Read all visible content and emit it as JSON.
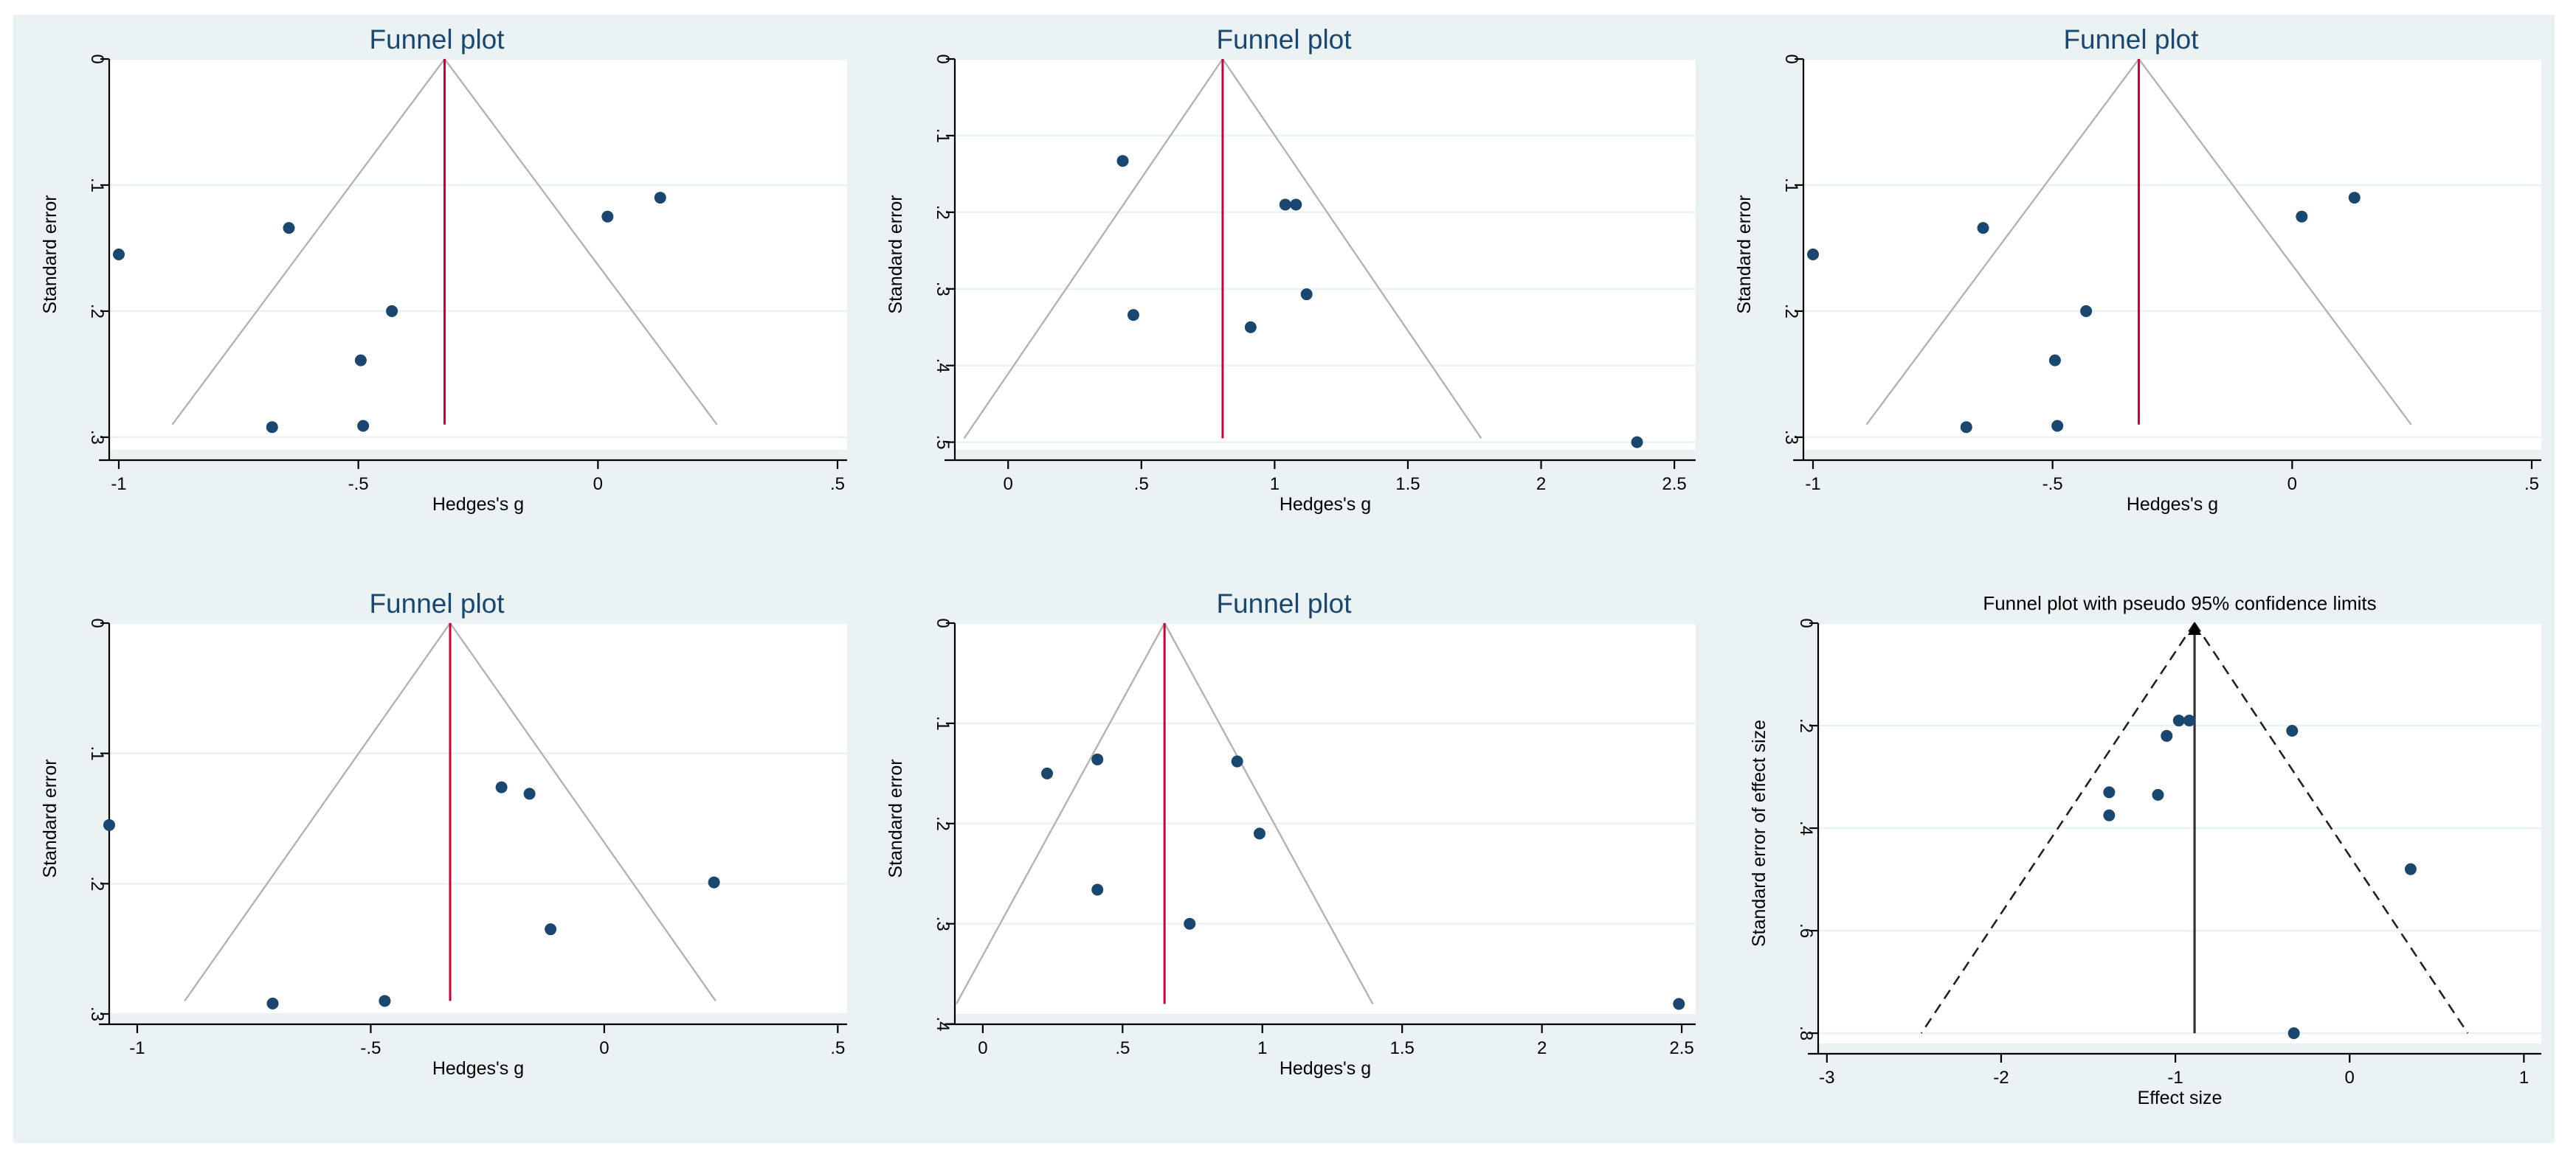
{
  "colors": {
    "figure_background": "#eaf2f3",
    "plot_background": "#ffffff",
    "title": "#1a476f",
    "point": "#1a476f",
    "pooled_line": "#c10534",
    "funnel_lines": "#b3b3b3"
  },
  "chart_data": [
    {
      "type": "scatter",
      "title": "Funnel plot",
      "xlabel": "Hedges's g",
      "ylabel": "Standard error",
      "xlim": [
        -1.02,
        0.52
      ],
      "ylim": [
        0,
        0.31
      ],
      "y_reversed": true,
      "xticks": [
        -1,
        -0.5,
        0,
        0.5
      ],
      "xtick_labels": [
        "-1",
        "-.5",
        "0",
        ".5"
      ],
      "yticks": [
        0,
        0.1,
        0.2,
        0.3
      ],
      "ytick_labels": [
        "0",
        ".1",
        ".2",
        ".3"
      ],
      "pooled_effect": -0.32,
      "funnel_base_se": 0.29,
      "center_line_style": "red-solid",
      "funnel_style": "gray-solid",
      "points": [
        {
          "x": -1.0,
          "y": 0.155
        },
        {
          "x": -0.645,
          "y": 0.134
        },
        {
          "x": -0.43,
          "y": 0.2
        },
        {
          "x": -0.495,
          "y": 0.239
        },
        {
          "x": -0.68,
          "y": 0.292
        },
        {
          "x": -0.49,
          "y": 0.291
        },
        {
          "x": 0.02,
          "y": 0.125
        },
        {
          "x": 0.13,
          "y": 0.11
        }
      ]
    },
    {
      "type": "scatter",
      "title": "Funnel plot",
      "xlabel": "Hedges's g",
      "ylabel": "Standard error",
      "xlim": [
        -0.2,
        2.58
      ],
      "ylim": [
        0,
        0.51
      ],
      "y_reversed": true,
      "xticks": [
        0,
        0.5,
        1,
        1.5,
        2,
        2.5
      ],
      "xtick_labels": [
        "0",
        ".5",
        "1",
        "1.5",
        "2",
        "2.5"
      ],
      "yticks": [
        0,
        0.1,
        0.2,
        0.3,
        0.4,
        0.5
      ],
      "ytick_labels": [
        "0",
        ".1",
        ".2",
        ".3",
        ".4",
        ".5"
      ],
      "pooled_effect": 0.805,
      "funnel_base_se": 0.495,
      "center_line_style": "red-solid",
      "funnel_style": "gray-solid",
      "points": [
        {
          "x": 0.43,
          "y": 0.133
        },
        {
          "x": 0.47,
          "y": 0.334
        },
        {
          "x": 0.91,
          "y": 0.35
        },
        {
          "x": 1.04,
          "y": 0.19
        },
        {
          "x": 1.08,
          "y": 0.19
        },
        {
          "x": 1.12,
          "y": 0.307
        },
        {
          "x": 2.36,
          "y": 0.5
        }
      ]
    },
    {
      "type": "scatter",
      "title": "Funnel plot",
      "xlabel": "Hedges's g",
      "ylabel": "Standard error",
      "xlim": [
        -1.02,
        0.52
      ],
      "ylim": [
        0,
        0.31
      ],
      "y_reversed": true,
      "xticks": [
        -1,
        -0.5,
        0,
        0.5
      ],
      "xtick_labels": [
        "-1",
        "-.5",
        "0",
        ".5"
      ],
      "yticks": [
        0,
        0.1,
        0.2,
        0.3
      ],
      "ytick_labels": [
        "0",
        ".1",
        ".2",
        ".3"
      ],
      "pooled_effect": -0.32,
      "funnel_base_se": 0.29,
      "center_line_style": "red-solid",
      "funnel_style": "gray-solid",
      "points": [
        {
          "x": -1.0,
          "y": 0.155
        },
        {
          "x": -0.645,
          "y": 0.134
        },
        {
          "x": -0.43,
          "y": 0.2
        },
        {
          "x": -0.495,
          "y": 0.239
        },
        {
          "x": -0.68,
          "y": 0.292
        },
        {
          "x": -0.49,
          "y": 0.291
        },
        {
          "x": 0.02,
          "y": 0.125
        },
        {
          "x": 0.13,
          "y": 0.11
        }
      ]
    },
    {
      "type": "scatter",
      "title": "Funnel plot",
      "xlabel": "Hedges's g",
      "ylabel": "Standard error",
      "xlim": [
        -1.06,
        0.52
      ],
      "ylim": [
        0,
        0.3
      ],
      "y_reversed": true,
      "xticks": [
        -1,
        -0.5,
        0,
        0.5
      ],
      "xtick_labels": [
        "-1",
        "-.5",
        "0",
        ".5"
      ],
      "yticks": [
        0,
        0.1,
        0.2,
        0.3
      ],
      "ytick_labels": [
        "0",
        ".1",
        ".2",
        ".3"
      ],
      "pooled_effect": -0.33,
      "funnel_base_se": 0.29,
      "center_line_style": "red-solid",
      "funnel_style": "gray-solid",
      "points": [
        {
          "x": -1.06,
          "y": 0.155
        },
        {
          "x": -0.71,
          "y": 0.292
        },
        {
          "x": -0.47,
          "y": 0.29
        },
        {
          "x": -0.22,
          "y": 0.126
        },
        {
          "x": -0.16,
          "y": 0.131
        },
        {
          "x": -0.115,
          "y": 0.235
        },
        {
          "x": 0.235,
          "y": 0.199
        }
      ]
    },
    {
      "type": "scatter",
      "title": "Funnel plot",
      "xlabel": "Hedges's g",
      "ylabel": "Standard error",
      "xlim": [
        -0.1,
        2.55
      ],
      "ylim": [
        0,
        0.39
      ],
      "y_reversed": true,
      "xticks": [
        0,
        0.5,
        1,
        1.5,
        2,
        2.5
      ],
      "xtick_labels": [
        "0",
        ".5",
        "1",
        "1.5",
        "2",
        "2.5"
      ],
      "yticks": [
        0,
        0.1,
        0.2,
        0.3,
        0.4
      ],
      "ytick_labels": [
        "0",
        ".1",
        ".2",
        ".3",
        ".4"
      ],
      "pooled_effect": 0.65,
      "funnel_base_se": 0.38,
      "center_line_style": "red-solid",
      "funnel_style": "gray-solid",
      "points": [
        {
          "x": 0.23,
          "y": 0.15
        },
        {
          "x": 0.41,
          "y": 0.136
        },
        {
          "x": 0.41,
          "y": 0.266
        },
        {
          "x": 0.74,
          "y": 0.3
        },
        {
          "x": 0.91,
          "y": 0.138
        },
        {
          "x": 0.99,
          "y": 0.21
        },
        {
          "x": 2.49,
          "y": 0.38
        }
      ]
    },
    {
      "type": "scatter",
      "title": "Funnel plot with pseudo 95% confidence limits",
      "xlabel": "Effect size",
      "ylabel": "Standard error of effect size",
      "xlim": [
        -3.05,
        1.1
      ],
      "ylim": [
        0,
        0.82
      ],
      "y_reversed": true,
      "xticks": [
        -3,
        -2,
        -1,
        0,
        1
      ],
      "xtick_labels": [
        "-3",
        "-2",
        "-1",
        "0",
        "1"
      ],
      "yticks": [
        0,
        0.2,
        0.4,
        0.6,
        0.8
      ],
      "ytick_labels": [
        "0",
        ".2",
        ".4",
        ".6",
        ".8"
      ],
      "pooled_effect": -0.89,
      "funnel_base_se": 0.8,
      "center_line_style": "black-solid",
      "funnel_style": "black-dashed",
      "points": [
        {
          "x": -0.98,
          "y": 0.19
        },
        {
          "x": -0.92,
          "y": 0.19
        },
        {
          "x": -1.05,
          "y": 0.22
        },
        {
          "x": -0.33,
          "y": 0.21
        },
        {
          "x": -1.38,
          "y": 0.33
        },
        {
          "x": -1.1,
          "y": 0.335
        },
        {
          "x": -1.38,
          "y": 0.375
        },
        {
          "x": 0.35,
          "y": 0.48
        },
        {
          "x": -0.32,
          "y": 0.8
        }
      ]
    }
  ]
}
